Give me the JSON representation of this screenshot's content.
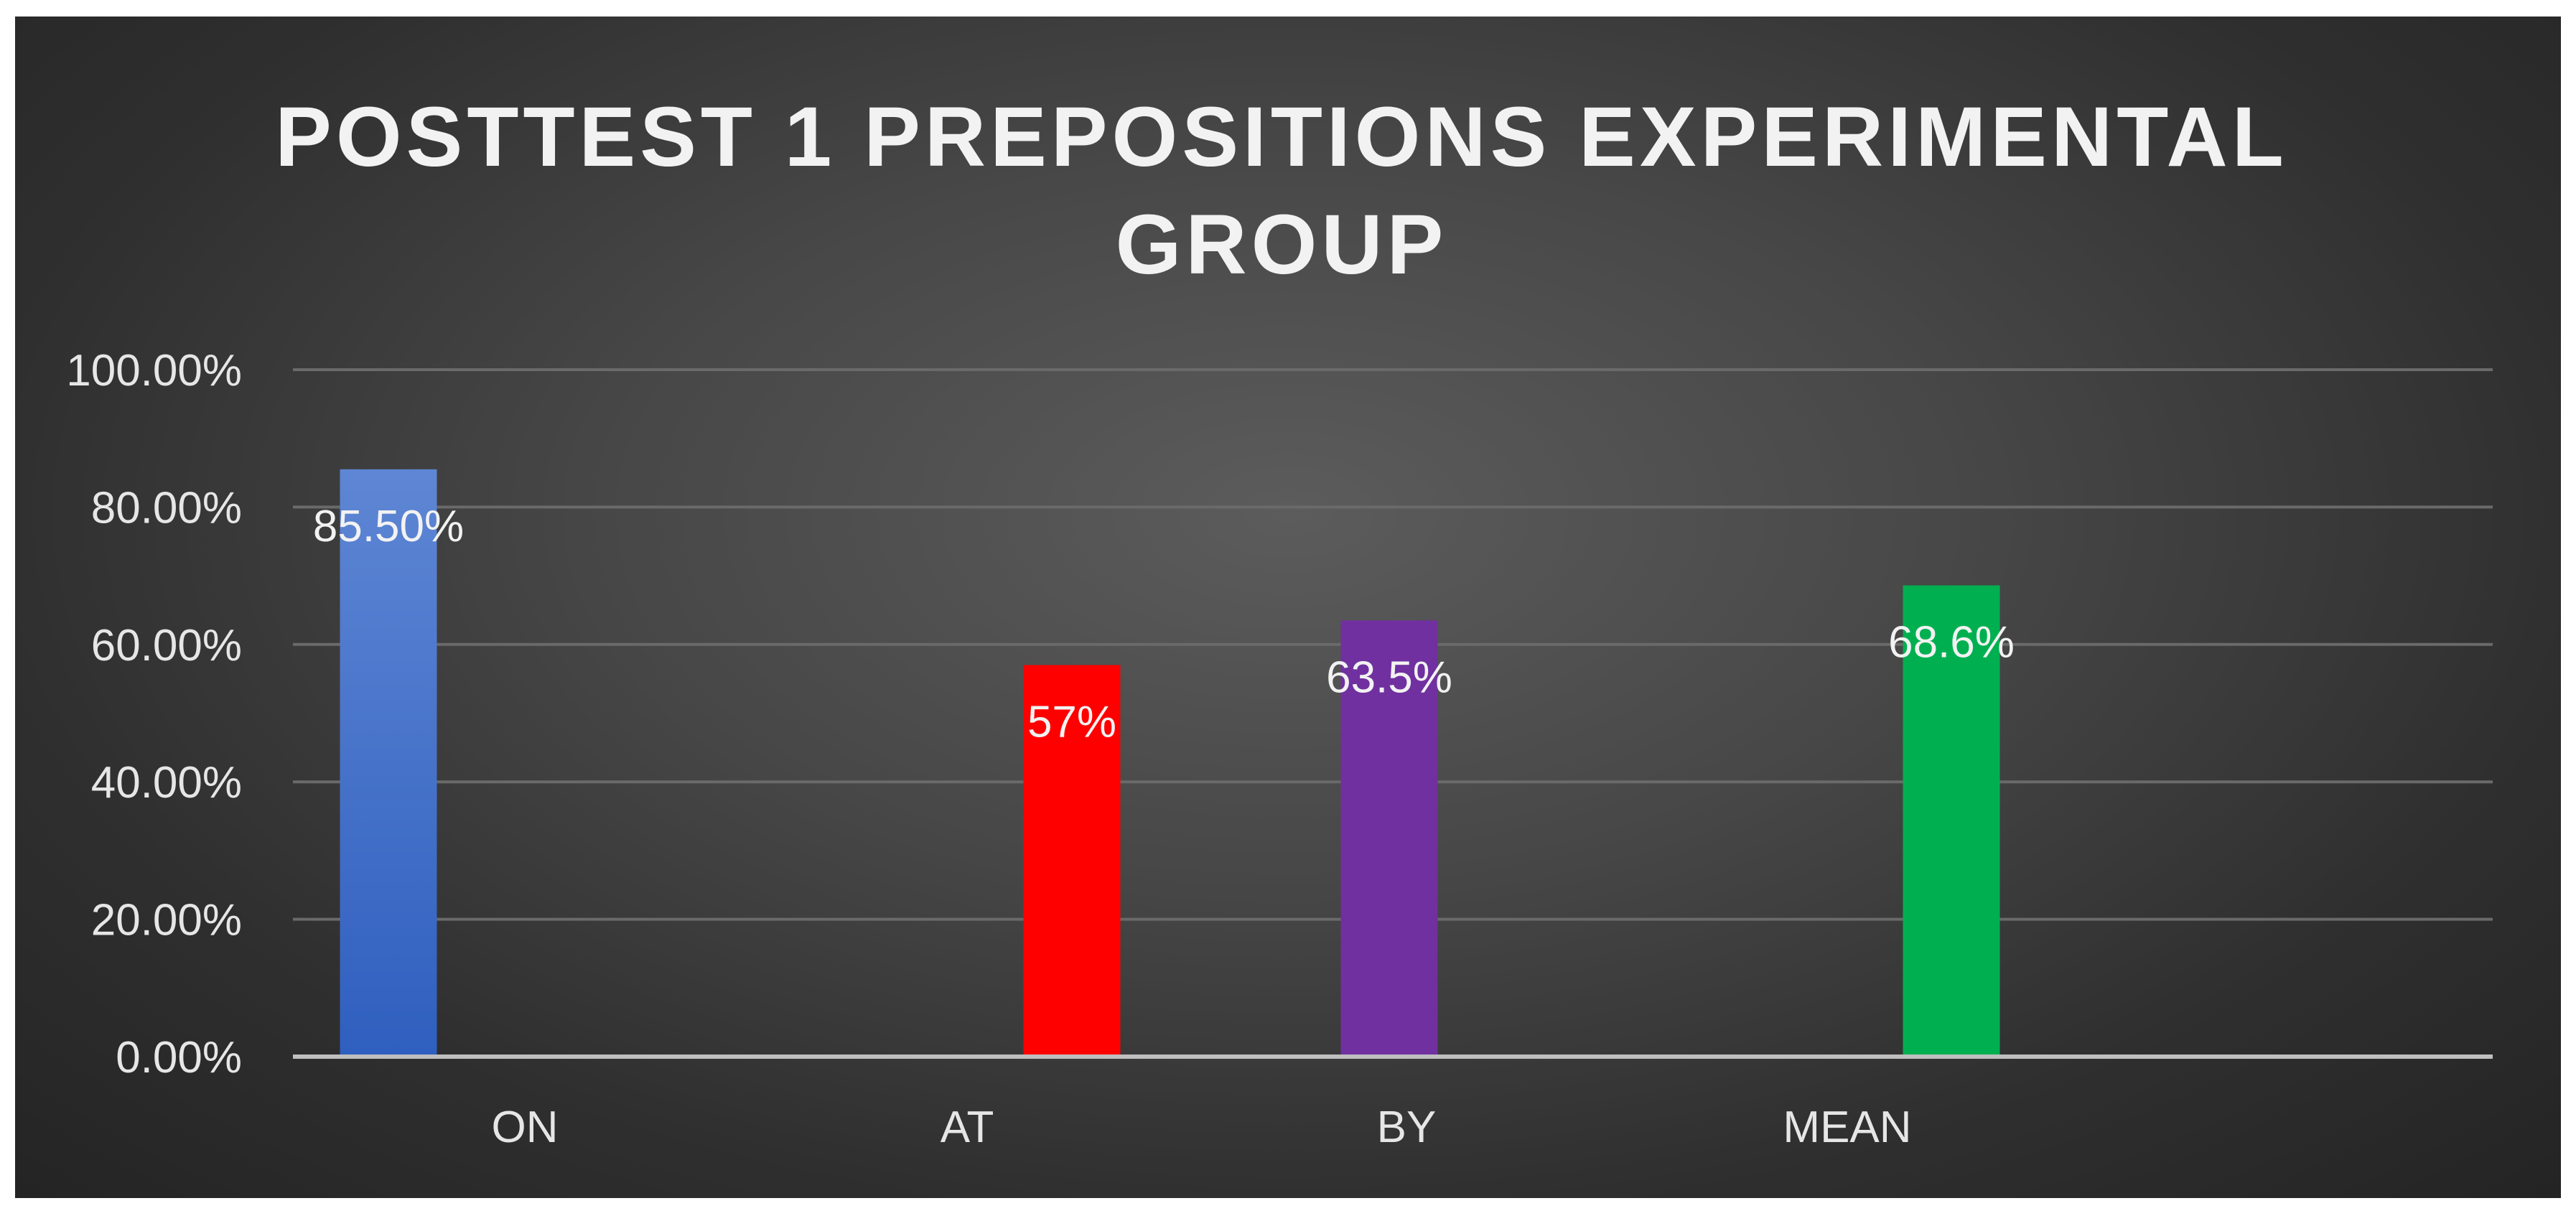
{
  "chart_data": {
    "type": "bar",
    "title": "POSTTEST 1 PREPOSITIONS EXPERIMENTAL GROUP",
    "title_lines": [
      "POSTTEST 1 PREPOSITIONS EXPERIMENTAL",
      "GROUP"
    ],
    "categories": [
      "ON",
      "AT",
      "BY",
      "MEAN"
    ],
    "values": [
      0.855,
      0.57,
      0.635,
      0.686
    ],
    "data_labels": [
      "85.50%",
      "57%",
      "63.5%",
      "68.6%"
    ],
    "colors": [
      "#4472c4",
      "#ff0000",
      "#7030a0",
      "#00b050"
    ],
    "bar_slot_in_category": [
      0,
      2,
      1,
      3
    ],
    "ylim": [
      0,
      1
    ],
    "yticks": [
      0,
      0.2,
      0.4,
      0.6,
      0.8,
      1.0
    ],
    "ytick_labels": [
      "0.00%",
      "20.00%",
      "40.00%",
      "60.00%",
      "80.00%",
      "100.00%"
    ],
    "grid": true,
    "legend": "none",
    "xlabel": "",
    "ylabel": ""
  }
}
